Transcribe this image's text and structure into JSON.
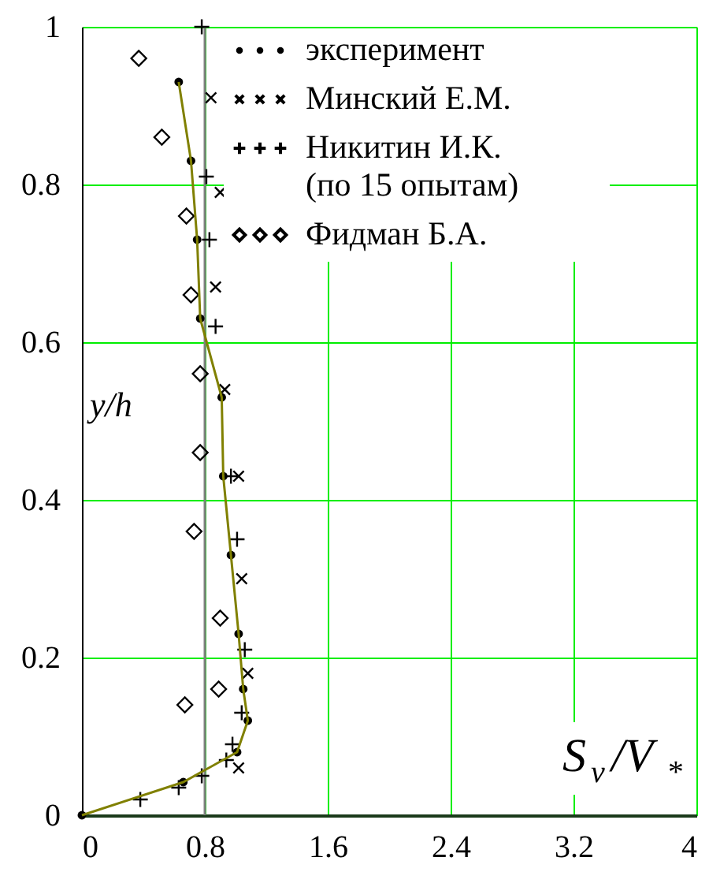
{
  "chart_data": {
    "type": "scatter",
    "xlabel": "S$_{v}$/V$_{*}$",
    "ylabel": "y/h",
    "xlim": [
      0,
      4
    ],
    "xticks": [
      0,
      0.8,
      1.6,
      2.4,
      3.2,
      4
    ],
    "ylim": [
      0,
      1
    ],
    "yticks": [
      0,
      0.2,
      0.4,
      0.6,
      0.8,
      1
    ],
    "grid": true,
    "legend": "top right",
    "ref_lines": [
      {
        "axis": "x",
        "value": 0.8,
        "color": "#808080"
      }
    ],
    "series": [
      {
        "name": "эксперимент",
        "color": "#000000",
        "marker": "circle",
        "x": [
          0,
          0.66,
          1.01,
          1.08,
          1.05,
          1.02,
          0.97,
          0.92,
          0.91,
          0.77,
          0.75,
          0.71,
          0.63
        ],
        "values": [
          0,
          0.042,
          0.08,
          0.12,
          0.16,
          0.23,
          0.33,
          0.43,
          0.53,
          0.63,
          0.73,
          0.83,
          0.93
        ]
      },
      {
        "name": "Минский Е.М.",
        "color": "#000000",
        "marker": "cross",
        "x": [
          0.84,
          0.9,
          0.87,
          0.93,
          1.02,
          1.04,
          1.08,
          1.02
        ],
        "values": [
          0.91,
          0.79,
          0.67,
          0.54,
          0.43,
          0.3,
          0.18,
          0.06
        ]
      },
      {
        "name": "Никитин И.К.\n(по 15 опытам)",
        "color": "#000000",
        "marker": "plus",
        "x": [
          0.78,
          0.81,
          0.83,
          0.87,
          0.97,
          1.01,
          1.06,
          1.04,
          0.98,
          0.94,
          0.78,
          0.63,
          0.38
        ],
        "values": [
          1.0,
          0.81,
          0.73,
          0.62,
          0.43,
          0.35,
          0.21,
          0.13,
          0.09,
          0.07,
          0.05,
          0.035,
          0.02
        ]
      },
      {
        "name": "Фидман Б.А.",
        "color": "#000000",
        "marker": "diamond",
        "x": [
          0.37,
          0.52,
          0.68,
          0.71,
          0.77,
          0.77,
          0.73,
          0.9,
          0.89,
          0.67
        ],
        "values": [
          0.96,
          0.86,
          0.76,
          0.66,
          0.56,
          0.46,
          0.36,
          0.25,
          0.16,
          0.14
        ]
      },
      {
        "type": "line",
        "color": "#808000",
        "x": [
          0,
          0.66,
          1.01,
          1.08,
          1.05,
          1.02,
          0.97,
          0.92,
          0.91,
          0.77,
          0.75,
          0.71,
          0.63
        ],
        "values": [
          0,
          0.042,
          0.08,
          0.12,
          0.16,
          0.23,
          0.33,
          0.43,
          0.53,
          0.63,
          0.73,
          0.83,
          0.93
        ]
      }
    ]
  }
}
